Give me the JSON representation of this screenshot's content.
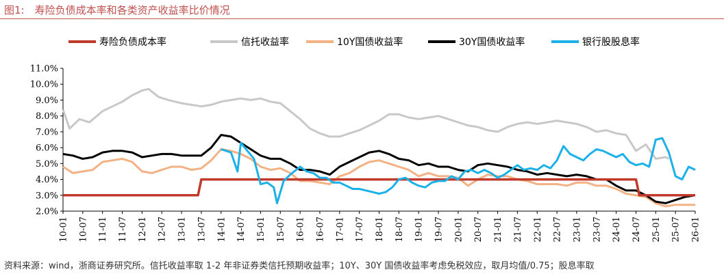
{
  "figure": {
    "title": "图1:　寿险负债成本率和各类资产收益率比价情况",
    "source": "资料来源：wind，浙商证券研究所。信托收益率取 1-2 年非证券类信托预期收益率；10Y、30Y 国债收益率考虑免税效应，取月均值/0.75；股息率取"
  },
  "chart_data": {
    "type": "line",
    "title": "",
    "xlabel": "",
    "ylabel": "",
    "ylim": [
      2.0,
      11.0
    ],
    "yticks": [
      "2.0%",
      "3.0%",
      "4.0%",
      "5.0%",
      "6.0%",
      "7.0%",
      "8.0%",
      "9.0%",
      "10.0%",
      "11.0%"
    ],
    "xticks": [
      "10-01",
      "10-07",
      "11-01",
      "11-07",
      "12-01",
      "12-07",
      "13-01",
      "13-07",
      "14-01",
      "14-07",
      "15-01",
      "15-07",
      "16-01",
      "16-07",
      "17-01",
      "17-07",
      "18-01",
      "18-07",
      "19-01",
      "19-07",
      "20-01",
      "20-07",
      "21-01",
      "21-07",
      "22-01",
      "22-07",
      "23-01",
      "23-07",
      "24-01",
      "24-07",
      "25-01",
      "25-07",
      "26-01"
    ],
    "grid": false,
    "legend_position": "top",
    "series": [
      {
        "name": "寿险负债成本率",
        "color": "#c0392b",
        "points": [
          [
            "10-01",
            3.0
          ],
          [
            "13-06",
            3.0
          ],
          [
            "13-07",
            4.0
          ],
          [
            "24-07",
            4.0
          ],
          [
            "24-08",
            3.0
          ],
          [
            "26-01",
            3.0
          ]
        ]
      },
      {
        "name": "信托收益率",
        "color": "#c8c8c8",
        "points": [
          [
            "10-01",
            8.4
          ],
          [
            "10-03",
            7.2
          ],
          [
            "10-06",
            7.8
          ],
          [
            "10-09",
            7.6
          ],
          [
            "11-01",
            8.3
          ],
          [
            "11-04",
            8.6
          ],
          [
            "11-07",
            8.9
          ],
          [
            "11-10",
            9.3
          ],
          [
            "12-01",
            9.6
          ],
          [
            "12-03",
            9.7
          ],
          [
            "12-06",
            9.2
          ],
          [
            "12-09",
            9.0
          ],
          [
            "13-01",
            8.8
          ],
          [
            "13-04",
            8.7
          ],
          [
            "13-07",
            8.6
          ],
          [
            "13-10",
            8.7
          ],
          [
            "14-01",
            8.9
          ],
          [
            "14-04",
            9.0
          ],
          [
            "14-07",
            9.1
          ],
          [
            "14-10",
            9.0
          ],
          [
            "15-01",
            9.1
          ],
          [
            "15-04",
            8.9
          ],
          [
            "15-07",
            8.8
          ],
          [
            "15-10",
            8.3
          ],
          [
            "16-01",
            7.8
          ],
          [
            "16-04",
            7.2
          ],
          [
            "16-07",
            6.9
          ],
          [
            "16-10",
            6.7
          ],
          [
            "17-01",
            6.7
          ],
          [
            "17-04",
            6.9
          ],
          [
            "17-07",
            7.1
          ],
          [
            "17-10",
            7.4
          ],
          [
            "18-01",
            7.7
          ],
          [
            "18-04",
            8.1
          ],
          [
            "18-07",
            8.1
          ],
          [
            "18-10",
            7.9
          ],
          [
            "19-01",
            7.8
          ],
          [
            "19-04",
            7.9
          ],
          [
            "19-07",
            8.0
          ],
          [
            "19-10",
            7.8
          ],
          [
            "20-01",
            7.6
          ],
          [
            "20-04",
            7.4
          ],
          [
            "20-07",
            7.3
          ],
          [
            "20-10",
            7.1
          ],
          [
            "21-01",
            7.0
          ],
          [
            "21-04",
            7.3
          ],
          [
            "21-07",
            7.5
          ],
          [
            "21-10",
            7.6
          ],
          [
            "22-01",
            7.5
          ],
          [
            "22-04",
            7.6
          ],
          [
            "22-07",
            7.7
          ],
          [
            "22-10",
            7.6
          ],
          [
            "23-01",
            7.5
          ],
          [
            "23-04",
            7.3
          ],
          [
            "23-07",
            7.0
          ],
          [
            "23-10",
            7.1
          ],
          [
            "24-01",
            6.9
          ],
          [
            "24-04",
            6.8
          ],
          [
            "24-07",
            5.8
          ],
          [
            "24-10",
            6.2
          ],
          [
            "25-01",
            5.3
          ],
          [
            "25-04",
            5.4
          ],
          [
            "25-05",
            5.3
          ]
        ]
      },
      {
        "name": "10Y国债收益率",
        "color": "#f4b183",
        "points": [
          [
            "10-01",
            4.8
          ],
          [
            "10-04",
            4.4
          ],
          [
            "10-07",
            4.5
          ],
          [
            "10-10",
            4.6
          ],
          [
            "11-01",
            5.1
          ],
          [
            "11-04",
            5.2
          ],
          [
            "11-07",
            5.3
          ],
          [
            "11-10",
            5.1
          ],
          [
            "12-01",
            4.5
          ],
          [
            "12-04",
            4.4
          ],
          [
            "12-07",
            4.6
          ],
          [
            "12-10",
            4.8
          ],
          [
            "13-01",
            4.8
          ],
          [
            "13-04",
            4.6
          ],
          [
            "13-07",
            4.7
          ],
          [
            "13-10",
            5.2
          ],
          [
            "14-01",
            5.9
          ],
          [
            "14-04",
            5.8
          ],
          [
            "14-07",
            5.6
          ],
          [
            "14-10",
            5.3
          ],
          [
            "15-01",
            4.8
          ],
          [
            "15-04",
            4.6
          ],
          [
            "15-07",
            4.7
          ],
          [
            "15-10",
            4.4
          ],
          [
            "16-01",
            3.9
          ],
          [
            "16-04",
            3.9
          ],
          [
            "16-07",
            3.8
          ],
          [
            "16-10",
            3.7
          ],
          [
            "17-01",
            4.2
          ],
          [
            "17-04",
            4.4
          ],
          [
            "17-07",
            4.8
          ],
          [
            "17-10",
            5.1
          ],
          [
            "18-01",
            5.2
          ],
          [
            "18-04",
            5.0
          ],
          [
            "18-07",
            4.8
          ],
          [
            "18-10",
            4.6
          ],
          [
            "19-01",
            4.2
          ],
          [
            "19-04",
            4.4
          ],
          [
            "19-07",
            4.2
          ],
          [
            "19-10",
            4.2
          ],
          [
            "20-01",
            4.1
          ],
          [
            "20-04",
            3.6
          ],
          [
            "20-07",
            4.0
          ],
          [
            "20-10",
            4.3
          ],
          [
            "21-01",
            4.2
          ],
          [
            "21-04",
            4.2
          ],
          [
            "21-07",
            4.0
          ],
          [
            "21-10",
            3.9
          ],
          [
            "22-01",
            3.7
          ],
          [
            "22-04",
            3.7
          ],
          [
            "22-07",
            3.7
          ],
          [
            "22-10",
            3.6
          ],
          [
            "23-01",
            3.8
          ],
          [
            "23-04",
            3.8
          ],
          [
            "23-07",
            3.6
          ],
          [
            "23-10",
            3.6
          ],
          [
            "24-01",
            3.4
          ],
          [
            "24-04",
            3.1
          ],
          [
            "24-07",
            3.0
          ],
          [
            "24-10",
            2.9
          ],
          [
            "25-01",
            2.5
          ],
          [
            "25-04",
            2.3
          ],
          [
            "25-07",
            2.4
          ],
          [
            "25-10",
            2.4
          ],
          [
            "26-01",
            2.4
          ]
        ]
      },
      {
        "name": "30Y国债收益率",
        "color": "#000000",
        "points": [
          [
            "10-01",
            5.6
          ],
          [
            "10-04",
            5.5
          ],
          [
            "10-07",
            5.3
          ],
          [
            "10-10",
            5.4
          ],
          [
            "11-01",
            5.7
          ],
          [
            "11-04",
            5.8
          ],
          [
            "11-07",
            5.8
          ],
          [
            "11-10",
            5.7
          ],
          [
            "12-01",
            5.4
          ],
          [
            "12-04",
            5.5
          ],
          [
            "12-07",
            5.6
          ],
          [
            "12-10",
            5.6
          ],
          [
            "13-01",
            5.5
          ],
          [
            "13-04",
            5.5
          ],
          [
            "13-07",
            5.5
          ],
          [
            "13-10",
            6.0
          ],
          [
            "14-01",
            6.8
          ],
          [
            "14-04",
            6.7
          ],
          [
            "14-07",
            6.3
          ],
          [
            "14-10",
            5.9
          ],
          [
            "15-01",
            5.5
          ],
          [
            "15-04",
            5.3
          ],
          [
            "15-07",
            5.3
          ],
          [
            "15-10",
            5.0
          ],
          [
            "16-01",
            4.6
          ],
          [
            "16-04",
            4.6
          ],
          [
            "16-07",
            4.5
          ],
          [
            "16-10",
            4.3
          ],
          [
            "17-01",
            4.8
          ],
          [
            "17-04",
            5.1
          ],
          [
            "17-07",
            5.4
          ],
          [
            "17-10",
            5.7
          ],
          [
            "18-01",
            5.8
          ],
          [
            "18-04",
            5.6
          ],
          [
            "18-07",
            5.3
          ],
          [
            "18-10",
            5.2
          ],
          [
            "19-01",
            4.9
          ],
          [
            "19-04",
            5.0
          ],
          [
            "19-07",
            4.8
          ],
          [
            "19-10",
            4.8
          ],
          [
            "20-01",
            4.6
          ],
          [
            "20-04",
            4.5
          ],
          [
            "20-07",
            4.9
          ],
          [
            "20-10",
            5.0
          ],
          [
            "21-01",
            4.9
          ],
          [
            "21-04",
            4.8
          ],
          [
            "21-07",
            4.6
          ],
          [
            "21-10",
            4.5
          ],
          [
            "22-01",
            4.3
          ],
          [
            "22-04",
            4.4
          ],
          [
            "22-07",
            4.3
          ],
          [
            "22-10",
            4.2
          ],
          [
            "23-01",
            4.3
          ],
          [
            "23-04",
            4.2
          ],
          [
            "23-07",
            4.0
          ],
          [
            "23-10",
            4.0
          ],
          [
            "24-01",
            3.6
          ],
          [
            "24-04",
            3.3
          ],
          [
            "24-07",
            3.3
          ],
          [
            "24-10",
            3.0
          ],
          [
            "25-01",
            2.6
          ],
          [
            "25-04",
            2.5
          ],
          [
            "25-07",
            2.7
          ],
          [
            "25-10",
            2.9
          ],
          [
            "26-01",
            3.0
          ]
        ]
      },
      {
        "name": "银行股股息率",
        "color": "#1ab0e8",
        "points": [
          [
            "14-01",
            5.9
          ],
          [
            "14-04",
            5.7
          ],
          [
            "14-06",
            4.5
          ],
          [
            "14-07",
            6.3
          ],
          [
            "14-09",
            5.8
          ],
          [
            "14-11",
            5.3
          ],
          [
            "15-01",
            3.7
          ],
          [
            "15-03",
            3.8
          ],
          [
            "15-05",
            3.5
          ],
          [
            "15-06",
            2.5
          ],
          [
            "15-08",
            3.9
          ],
          [
            "15-10",
            4.3
          ],
          [
            "16-01",
            4.8
          ],
          [
            "16-03",
            4.5
          ],
          [
            "16-05",
            4.4
          ],
          [
            "16-07",
            4.1
          ],
          [
            "16-09",
            4.1
          ],
          [
            "16-11",
            3.8
          ],
          [
            "17-01",
            3.8
          ],
          [
            "17-03",
            3.6
          ],
          [
            "17-05",
            3.4
          ],
          [
            "17-07",
            3.4
          ],
          [
            "17-09",
            3.3
          ],
          [
            "17-11",
            3.2
          ],
          [
            "18-01",
            3.1
          ],
          [
            "18-03",
            3.2
          ],
          [
            "18-05",
            3.5
          ],
          [
            "18-07",
            4.0
          ],
          [
            "18-09",
            4.1
          ],
          [
            "18-11",
            3.8
          ],
          [
            "19-01",
            3.6
          ],
          [
            "19-03",
            3.5
          ],
          [
            "19-05",
            3.8
          ],
          [
            "19-07",
            3.9
          ],
          [
            "19-09",
            3.9
          ],
          [
            "19-11",
            4.2
          ],
          [
            "20-01",
            4.0
          ],
          [
            "20-03",
            4.5
          ],
          [
            "20-05",
            4.6
          ],
          [
            "20-07",
            4.4
          ],
          [
            "20-09",
            4.6
          ],
          [
            "20-11",
            4.4
          ],
          [
            "21-01",
            4.1
          ],
          [
            "21-03",
            4.3
          ],
          [
            "21-05",
            4.6
          ],
          [
            "21-07",
            4.9
          ],
          [
            "21-09",
            4.6
          ],
          [
            "21-11",
            4.7
          ],
          [
            "22-01",
            4.6
          ],
          [
            "22-03",
            4.9
          ],
          [
            "22-05",
            4.7
          ],
          [
            "22-07",
            5.2
          ],
          [
            "22-09",
            6.1
          ],
          [
            "22-11",
            5.6
          ],
          [
            "23-01",
            5.4
          ],
          [
            "23-03",
            5.2
          ],
          [
            "23-05",
            5.6
          ],
          [
            "23-07",
            5.9
          ],
          [
            "23-09",
            5.8
          ],
          [
            "23-11",
            5.6
          ],
          [
            "24-01",
            5.4
          ],
          [
            "24-03",
            5.6
          ],
          [
            "24-05",
            5.1
          ],
          [
            "24-07",
            4.9
          ],
          [
            "24-09",
            5.0
          ],
          [
            "24-11",
            4.8
          ],
          [
            "25-01",
            6.5
          ],
          [
            "25-03",
            6.6
          ],
          [
            "25-05",
            5.7
          ],
          [
            "25-07",
            4.2
          ],
          [
            "25-09",
            4.0
          ],
          [
            "25-11",
            4.8
          ],
          [
            "26-01",
            4.6
          ]
        ]
      }
    ]
  }
}
